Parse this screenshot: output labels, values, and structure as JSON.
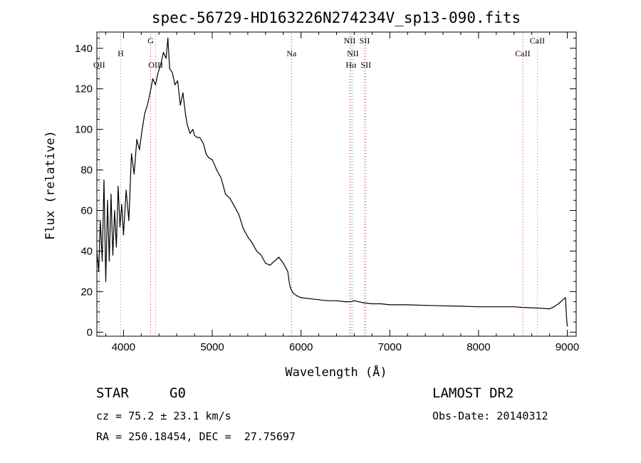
{
  "chart_data": {
    "type": "line",
    "title": "spec-56729-HD163226N274234V_sp13-090.fits",
    "xlabel": "Wavelength (Å)",
    "ylabel": "Flux (relative)",
    "xlim": [
      3700,
      9100
    ],
    "ylim": [
      -2,
      148
    ],
    "xticks": [
      4000,
      5000,
      6000,
      7000,
      8000,
      9000
    ],
    "yticks": [
      0,
      20,
      40,
      60,
      80,
      100,
      120,
      140
    ],
    "grid": false,
    "series": [
      {
        "x": [
          3700,
          3720,
          3740,
          3760,
          3780,
          3800,
          3820,
          3840,
          3860,
          3880,
          3900,
          3920,
          3940,
          3960,
          3980,
          4000,
          4030,
          4060,
          4090,
          4120,
          4150,
          4180,
          4210,
          4240,
          4270,
          4300,
          4330,
          4360,
          4390,
          4420,
          4450,
          4480,
          4500,
          4520,
          4550,
          4580,
          4610,
          4640,
          4670,
          4700,
          4720,
          4750,
          4780,
          4800,
          4830,
          4860,
          4900,
          4930,
          4960,
          5000,
          5050,
          5100,
          5150,
          5200,
          5250,
          5300,
          5350,
          5400,
          5450,
          5500,
          5550,
          5600,
          5650,
          5700,
          5750,
          5800,
          5850,
          5870,
          5880,
          5890,
          5900,
          5920,
          5950,
          6000,
          6100,
          6200,
          6300,
          6400,
          6500,
          6560,
          6600,
          6700,
          6800,
          6900,
          7000,
          7200,
          7400,
          7600,
          7800,
          8000,
          8200,
          8400,
          8500,
          8600,
          8700,
          8800,
          8850,
          8900,
          8950,
          8980,
          8990,
          9000
        ],
        "y": [
          40,
          30,
          55,
          35,
          75,
          25,
          65,
          35,
          68,
          38,
          60,
          42,
          72,
          52,
          63,
          48,
          70,
          55,
          88,
          78,
          95,
          90,
          100,
          108,
          112,
          118,
          125,
          122,
          128,
          132,
          138,
          135,
          145,
          130,
          128,
          122,
          124,
          112,
          118,
          107,
          102,
          98,
          100,
          97,
          96,
          96,
          93,
          88,
          86,
          85,
          80,
          76,
          68,
          66,
          62,
          58,
          51,
          47,
          44,
          40,
          38,
          34,
          33,
          35,
          37,
          34,
          30,
          24,
          22,
          21,
          20,
          19,
          18,
          17,
          16.5,
          16,
          15.5,
          15.5,
          15,
          15,
          15.5,
          14.5,
          14,
          14,
          13.5,
          13.5,
          13.2,
          13,
          12.8,
          12.5,
          12.5,
          12.5,
          12.2,
          12,
          11.8,
          11.5,
          12.5,
          14,
          16,
          17,
          8,
          3
        ]
      }
    ],
    "spectral_lines": [
      {
        "label": "OII",
        "x": 3727
      },
      {
        "label": "H",
        "x": 3968
      },
      {
        "label": "G",
        "x": 4305
      },
      {
        "label": "OIII",
        "x": 4363
      },
      {
        "label": "Na",
        "x": 5893
      },
      {
        "label": "NII",
        "x": 6548
      },
      {
        "label": "Hα",
        "x": 6563
      },
      {
        "label": "NII",
        "x": 6584
      },
      {
        "label": "SII",
        "x": 6717
      },
      {
        "label": "SII",
        "x": 6731
      },
      {
        "label": "CaII",
        "x": 8498
      },
      {
        "label": "CaII",
        "x": 8662
      }
    ]
  },
  "info": {
    "class_label": "STAR",
    "subclass_label": "G0",
    "survey_label": "LAMOST DR2",
    "cz_text": "cz = 75.2 ± 23.1 km/s",
    "obs_date_text": "Obs-Date: 20140312",
    "coords_text": "RA = 250.18454, DEC =  27.75697"
  },
  "colors": {
    "spectrum": "#000000",
    "red_line": "#d03030",
    "gray_line": "#888888"
  }
}
